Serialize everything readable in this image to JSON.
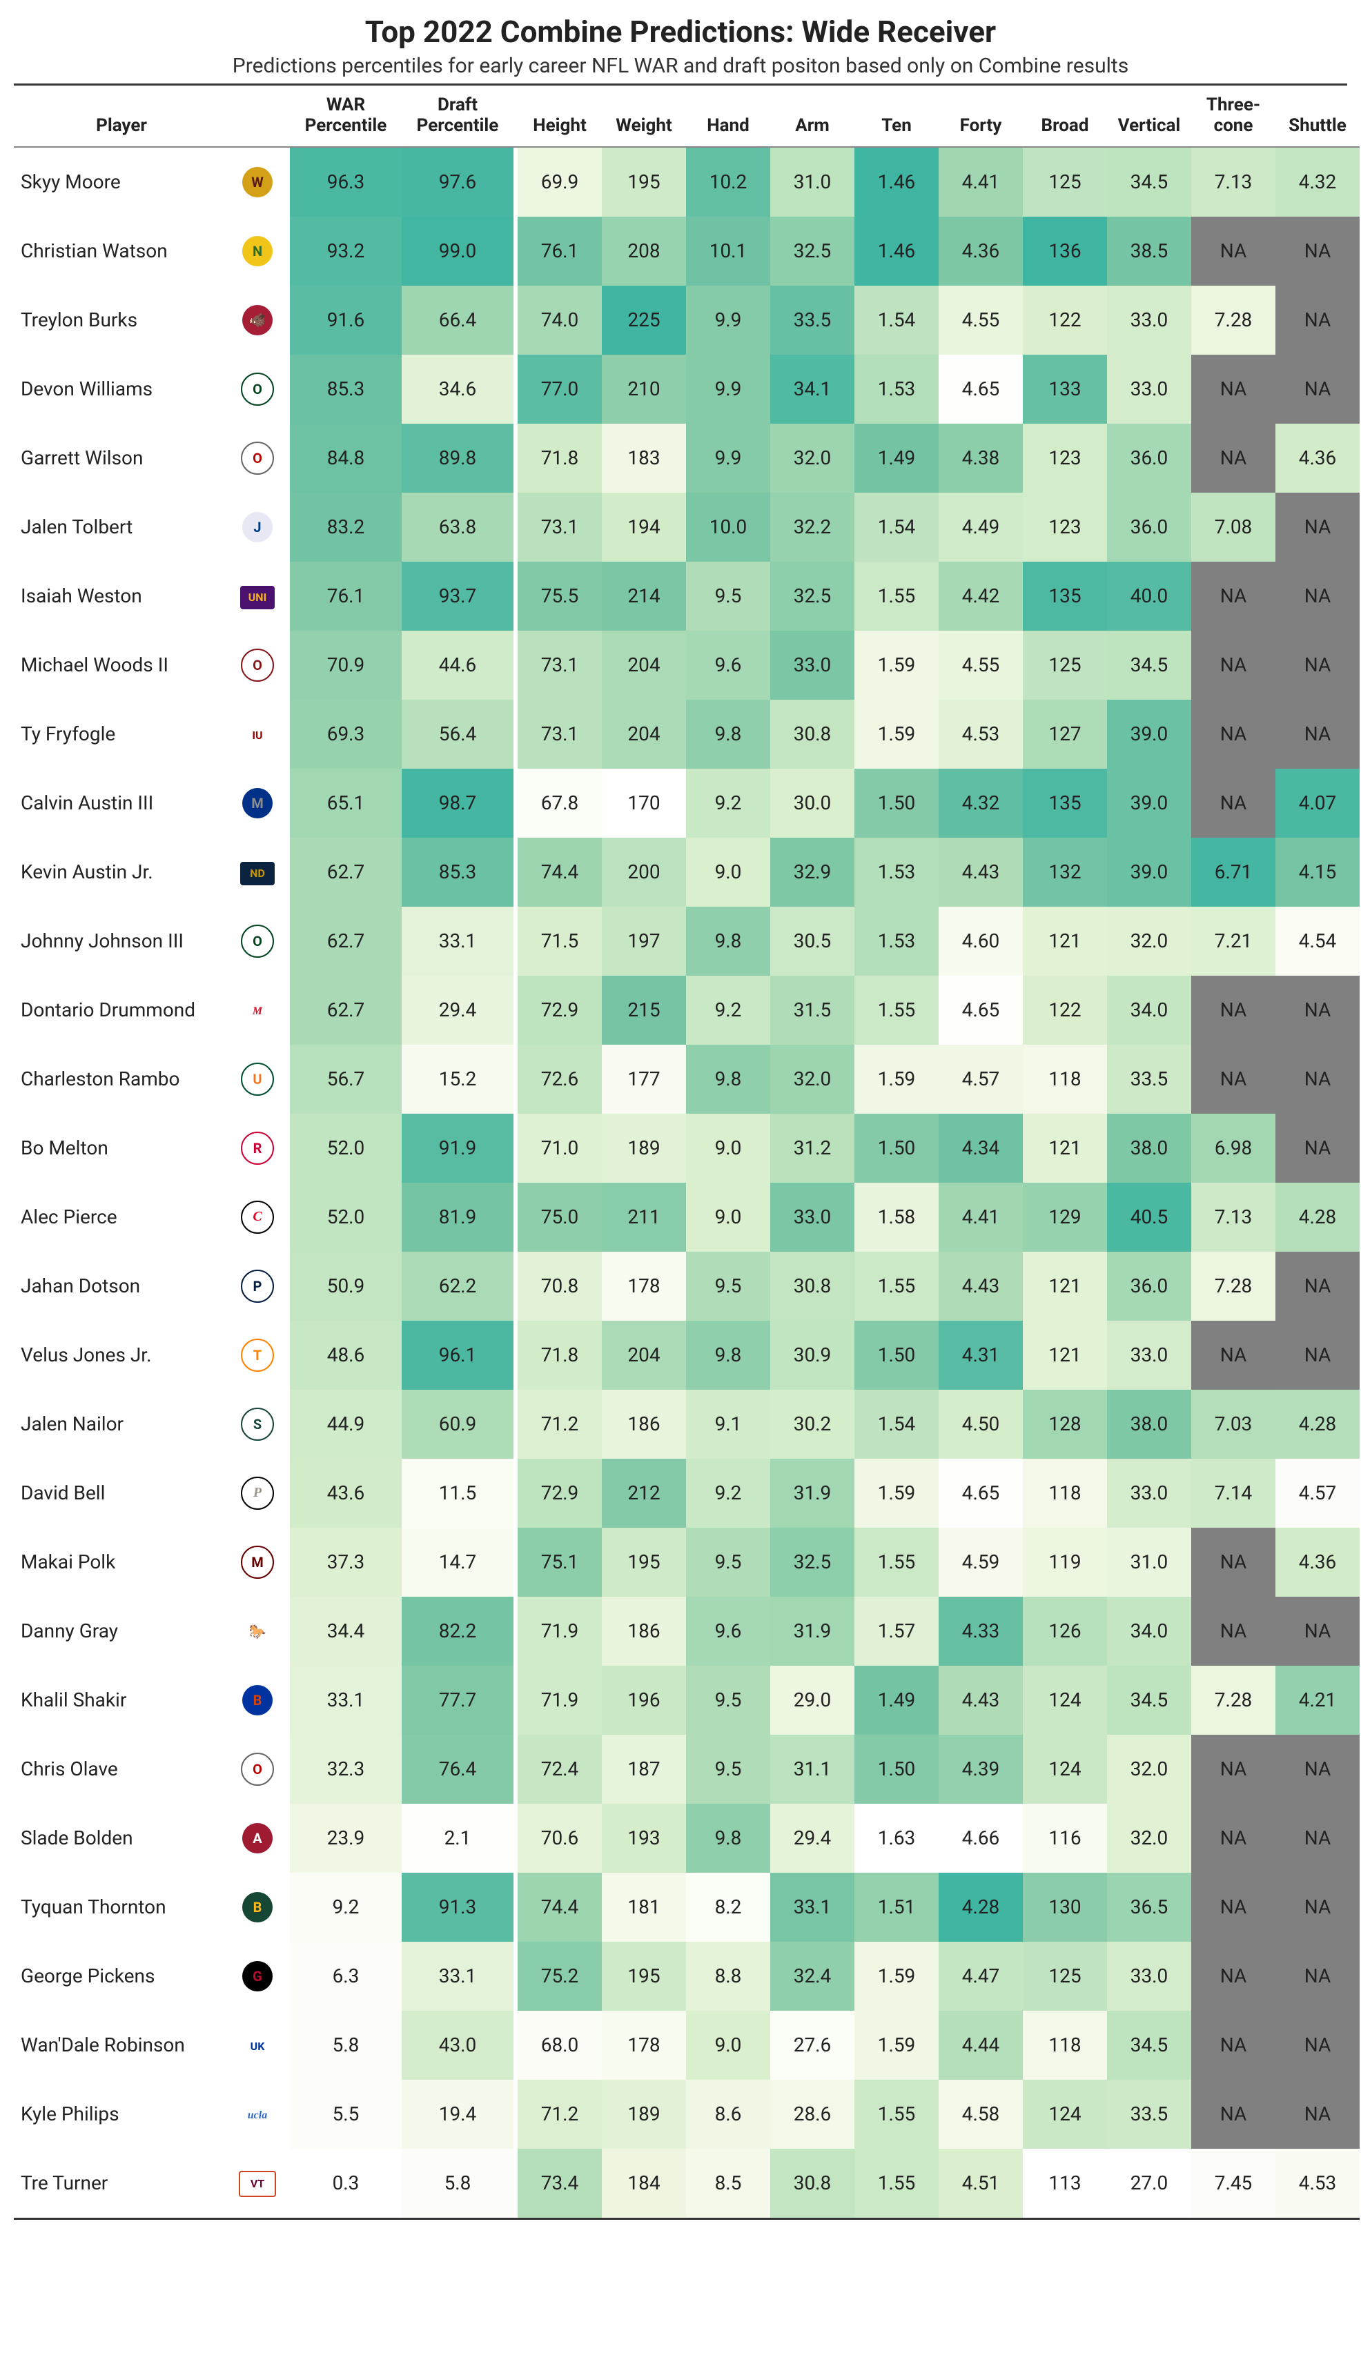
{
  "title": "Top 2022 Combine Predictions: Wide Receiver",
  "subtitle": "Predictions percentiles for early career NFL WAR and draft positon based only on Combine results",
  "colors": {
    "na": "#808080",
    "scale": [
      {
        "v": 0,
        "c": "#ffffff"
      },
      {
        "v": 20,
        "c": "#f5f9ea"
      },
      {
        "v": 40,
        "c": "#daefce"
      },
      {
        "v": 60,
        "c": "#b0ddb8"
      },
      {
        "v": 80,
        "c": "#7bc6a4"
      },
      {
        "v": 100,
        "c": "#40b5a2"
      }
    ]
  },
  "columns": [
    {
      "key": "player",
      "label": "Player"
    },
    {
      "key": "logo",
      "label": ""
    },
    {
      "key": "war",
      "label": "WAR Percentile",
      "wide": true
    },
    {
      "key": "draft",
      "label": "Draft Percentile",
      "wide": true
    },
    {
      "key": "height",
      "label": "Height"
    },
    {
      "key": "weight",
      "label": "Weight"
    },
    {
      "key": "hand",
      "label": "Hand"
    },
    {
      "key": "arm",
      "label": "Arm"
    },
    {
      "key": "ten",
      "label": "Ten"
    },
    {
      "key": "forty",
      "label": "Forty"
    },
    {
      "key": "broad",
      "label": "Broad"
    },
    {
      "key": "vertical",
      "label": "Vertical"
    },
    {
      "key": "three",
      "label": "Three-cone"
    },
    {
      "key": "shuttle",
      "label": "Shuttle"
    }
  ],
  "metrics": [
    {
      "key": "war",
      "min": 0,
      "max": 100
    },
    {
      "key": "draft",
      "min": 0,
      "max": 100
    },
    {
      "key": "height",
      "min": 67,
      "max": 78,
      "fmt": 1
    },
    {
      "key": "weight",
      "min": 170,
      "max": 225,
      "fmt": 0
    },
    {
      "key": "hand",
      "min": 8.0,
      "max": 10.5,
      "fmt": 1
    },
    {
      "key": "arm",
      "min": 27,
      "max": 34.5,
      "fmt": 1
    },
    {
      "key": "ten",
      "min": 1.63,
      "max": 1.46,
      "fmt": 2,
      "inv": true
    },
    {
      "key": "forty",
      "min": 4.66,
      "max": 4.28,
      "fmt": 2,
      "inv": true
    },
    {
      "key": "broad",
      "min": 113,
      "max": 136,
      "fmt": 0
    },
    {
      "key": "vertical",
      "min": 27,
      "max": 41,
      "fmt": 1
    },
    {
      "key": "three",
      "min": 7.5,
      "max": 6.7,
      "fmt": 2,
      "inv": true
    },
    {
      "key": "shuttle",
      "min": 4.6,
      "max": 4.05,
      "fmt": 2,
      "inv": true
    }
  ],
  "rows": [
    {
      "player": "Skyy Moore",
      "logo": {
        "txt": "W",
        "bg": "#d4a017",
        "fg": "#5a1a1a"
      },
      "war": 96.3,
      "draft": 97.6,
      "height": 69.9,
      "weight": 195,
      "hand": 10.2,
      "arm": 31.0,
      "ten": 1.46,
      "forty": 4.41,
      "broad": 125,
      "vertical": 34.5,
      "three": 7.13,
      "shuttle": 4.32
    },
    {
      "player": "Christian Watson",
      "logo": {
        "txt": "N",
        "bg": "#f0c419",
        "fg": "#2a6b2a"
      },
      "war": 93.2,
      "draft": 99.0,
      "height": 76.1,
      "weight": 208,
      "hand": 10.1,
      "arm": 32.5,
      "ten": 1.46,
      "forty": 4.36,
      "broad": 136,
      "vertical": 38.5,
      "three": null,
      "shuttle": null
    },
    {
      "player": "Treylon Burks",
      "logo": {
        "txt": "🐗",
        "bg": "#a51e36",
        "fg": "#fff"
      },
      "war": 91.6,
      "draft": 66.4,
      "height": 74.0,
      "weight": 225,
      "hand": 9.9,
      "arm": 33.5,
      "ten": 1.54,
      "forty": 4.55,
      "broad": 122,
      "vertical": 33.0,
      "three": 7.28,
      "shuttle": null
    },
    {
      "player": "Devon Williams",
      "logo": {
        "txt": "O",
        "bg": "#ffffff",
        "fg": "#044520",
        "br": "#044520"
      },
      "war": 85.3,
      "draft": 34.6,
      "height": 77.0,
      "weight": 210,
      "hand": 9.9,
      "arm": 34.1,
      "ten": 1.53,
      "forty": 4.65,
      "broad": 133,
      "vertical": 33.0,
      "three": null,
      "shuttle": null
    },
    {
      "player": "Garrett Wilson",
      "logo": {
        "txt": "O",
        "bg": "#ffffff",
        "fg": "#bb0000",
        "br": "#666"
      },
      "war": 84.8,
      "draft": 89.8,
      "height": 71.8,
      "weight": 183,
      "hand": 9.9,
      "arm": 32.0,
      "ten": 1.49,
      "forty": 4.38,
      "broad": 123,
      "vertical": 36.0,
      "three": null,
      "shuttle": 4.36
    },
    {
      "player": "Jalen Tolbert",
      "logo": {
        "txt": "J",
        "bg": "#e8e8f5",
        "fg": "#003e7e"
      },
      "war": 83.2,
      "draft": 63.8,
      "height": 73.1,
      "weight": 194,
      "hand": 10.0,
      "arm": 32.2,
      "ten": 1.54,
      "forty": 4.49,
      "broad": 123,
      "vertical": 36.0,
      "three": 7.08,
      "shuttle": null
    },
    {
      "player": "Isaiah Weston",
      "logo": {
        "txt": "UNI",
        "bg": "#4b116f",
        "fg": "#f6b21b",
        "sq": true
      },
      "war": 76.1,
      "draft": 93.7,
      "height": 75.5,
      "weight": 214,
      "hand": 9.5,
      "arm": 32.5,
      "ten": 1.55,
      "forty": 4.42,
      "broad": 135,
      "vertical": 40.0,
      "three": null,
      "shuttle": null
    },
    {
      "player": "Michael Woods II",
      "logo": {
        "txt": "O",
        "bg": "#ffffff",
        "fg": "#841617",
        "br": "#841617"
      },
      "war": 70.9,
      "draft": 44.6,
      "height": 73.1,
      "weight": 204,
      "hand": 9.6,
      "arm": 33.0,
      "ten": 1.59,
      "forty": 4.55,
      "broad": 125,
      "vertical": 34.5,
      "three": null,
      "shuttle": null
    },
    {
      "player": "Ty Fryfogle",
      "logo": {
        "txt": "IU",
        "bg": "#ffffff",
        "fg": "#990000",
        "sq": true
      },
      "war": 69.3,
      "draft": 56.4,
      "height": 73.1,
      "weight": 204,
      "hand": 9.8,
      "arm": 30.8,
      "ten": 1.59,
      "forty": 4.53,
      "broad": 127,
      "vertical": 39.0,
      "three": null,
      "shuttle": null
    },
    {
      "player": "Calvin Austin III",
      "logo": {
        "txt": "M",
        "bg": "#003087",
        "fg": "#898d8d"
      },
      "war": 65.1,
      "draft": 98.7,
      "height": 67.8,
      "weight": 170,
      "hand": 9.2,
      "arm": 30.0,
      "ten": 1.5,
      "forty": 4.32,
      "broad": 135,
      "vertical": 39.0,
      "three": null,
      "shuttle": 4.07
    },
    {
      "player": "Kevin Austin Jr.",
      "logo": {
        "txt": "ND",
        "bg": "#0c2340",
        "fg": "#c99700",
        "sq": true
      },
      "war": 62.7,
      "draft": 85.3,
      "height": 74.4,
      "weight": 200,
      "hand": 9.0,
      "arm": 32.9,
      "ten": 1.53,
      "forty": 4.43,
      "broad": 132,
      "vertical": 39.0,
      "three": 6.71,
      "shuttle": 4.15
    },
    {
      "player": "Johnny Johnson III",
      "logo": {
        "txt": "O",
        "bg": "#ffffff",
        "fg": "#044520",
        "br": "#044520"
      },
      "war": 62.7,
      "draft": 33.1,
      "height": 71.5,
      "weight": 197,
      "hand": 9.8,
      "arm": 30.5,
      "ten": 1.53,
      "forty": 4.6,
      "broad": 121,
      "vertical": 32.0,
      "three": 7.21,
      "shuttle": 4.54
    },
    {
      "player": "Dontario Drummond",
      "logo": {
        "txt": "M",
        "bg": "#ffffff",
        "fg": "#ce1126",
        "sq": true,
        "sc": true
      },
      "war": 62.7,
      "draft": 29.4,
      "height": 72.9,
      "weight": 215,
      "hand": 9.2,
      "arm": 31.5,
      "ten": 1.55,
      "forty": 4.65,
      "broad": 122,
      "vertical": 34.0,
      "three": null,
      "shuttle": null
    },
    {
      "player": "Charleston Rambo",
      "logo": {
        "txt": "U",
        "bg": "#ffffff",
        "fg": "#f47321",
        "br": "#005030"
      },
      "war": 56.7,
      "draft": 15.2,
      "height": 72.6,
      "weight": 177,
      "hand": 9.8,
      "arm": 32.0,
      "ten": 1.59,
      "forty": 4.57,
      "broad": 118,
      "vertical": 33.5,
      "three": null,
      "shuttle": null
    },
    {
      "player": "Bo Melton",
      "logo": {
        "txt": "R",
        "bg": "#ffffff",
        "fg": "#cc0033",
        "br": "#cc0033"
      },
      "war": 52.0,
      "draft": 91.9,
      "height": 71.0,
      "weight": 189,
      "hand": 9.0,
      "arm": 31.2,
      "ten": 1.5,
      "forty": 4.34,
      "broad": 121,
      "vertical": 38.0,
      "three": 6.98,
      "shuttle": null
    },
    {
      "player": "Alec Pierce",
      "logo": {
        "txt": "C",
        "bg": "#ffffff",
        "fg": "#e00122",
        "br": "#000",
        "sc": true
      },
      "war": 52.0,
      "draft": 81.9,
      "height": 75.0,
      "weight": 211,
      "hand": 9.0,
      "arm": 33.0,
      "ten": 1.58,
      "forty": 4.41,
      "broad": 129,
      "vertical": 40.5,
      "three": 7.13,
      "shuttle": 4.28
    },
    {
      "player": "Jahan Dotson",
      "logo": {
        "txt": "P",
        "bg": "#ffffff",
        "fg": "#041e42",
        "br": "#041e42"
      },
      "war": 50.9,
      "draft": 62.2,
      "height": 70.8,
      "weight": 178,
      "hand": 9.5,
      "arm": 30.8,
      "ten": 1.55,
      "forty": 4.43,
      "broad": 121,
      "vertical": 36.0,
      "three": 7.28,
      "shuttle": null
    },
    {
      "player": "Velus Jones Jr.",
      "logo": {
        "txt": "T",
        "bg": "#ffffff",
        "fg": "#ff8200",
        "br": "#ff8200"
      },
      "war": 48.6,
      "draft": 96.1,
      "height": 71.8,
      "weight": 204,
      "hand": 9.8,
      "arm": 30.9,
      "ten": 1.5,
      "forty": 4.31,
      "broad": 121,
      "vertical": 33.0,
      "three": null,
      "shuttle": null
    },
    {
      "player": "Jalen Nailor",
      "logo": {
        "txt": "S",
        "bg": "#ffffff",
        "fg": "#18453b",
        "br": "#18453b"
      },
      "war": 44.9,
      "draft": 60.9,
      "height": 71.2,
      "weight": 186,
      "hand": 9.1,
      "arm": 30.2,
      "ten": 1.54,
      "forty": 4.5,
      "broad": 128,
      "vertical": 38.0,
      "three": 7.03,
      "shuttle": 4.28
    },
    {
      "player": "David Bell",
      "logo": {
        "txt": "P",
        "bg": "#ffffff",
        "fg": "#9d968d",
        "br": "#000",
        "sc": true
      },
      "war": 43.6,
      "draft": 11.5,
      "height": 72.9,
      "weight": 212,
      "hand": 9.2,
      "arm": 31.9,
      "ten": 1.59,
      "forty": 4.65,
      "broad": 118,
      "vertical": 33.0,
      "three": 7.14,
      "shuttle": 4.57
    },
    {
      "player": "Makai Polk",
      "logo": {
        "txt": "M",
        "bg": "#ffffff",
        "fg": "#660000",
        "br": "#660000"
      },
      "war": 37.3,
      "draft": 14.7,
      "height": 75.1,
      "weight": 195,
      "hand": 9.5,
      "arm": 32.5,
      "ten": 1.55,
      "forty": 4.59,
      "broad": 119,
      "vertical": 31.0,
      "three": null,
      "shuttle": 4.36
    },
    {
      "player": "Danny Gray",
      "logo": {
        "txt": "🐎",
        "bg": "#ffffff",
        "fg": "#cc0035"
      },
      "war": 34.4,
      "draft": 82.2,
      "height": 71.9,
      "weight": 186,
      "hand": 9.6,
      "arm": 31.9,
      "ten": 1.57,
      "forty": 4.33,
      "broad": 126,
      "vertical": 34.0,
      "three": null,
      "shuttle": null
    },
    {
      "player": "Khalil Shakir",
      "logo": {
        "txt": "B",
        "bg": "#0033a0",
        "fg": "#d64309"
      },
      "war": 33.1,
      "draft": 77.7,
      "height": 71.9,
      "weight": 196,
      "hand": 9.5,
      "arm": 29.0,
      "ten": 1.49,
      "forty": 4.43,
      "broad": 124,
      "vertical": 34.5,
      "three": 7.28,
      "shuttle": 4.21
    },
    {
      "player": "Chris Olave",
      "logo": {
        "txt": "O",
        "bg": "#ffffff",
        "fg": "#bb0000",
        "br": "#666"
      },
      "war": 32.3,
      "draft": 76.4,
      "height": 72.4,
      "weight": 187,
      "hand": 9.5,
      "arm": 31.1,
      "ten": 1.5,
      "forty": 4.39,
      "broad": 124,
      "vertical": 32.0,
      "three": null,
      "shuttle": null
    },
    {
      "player": "Slade Bolden",
      "logo": {
        "txt": "A",
        "bg": "#9e1b32",
        "fg": "#ffffff"
      },
      "war": 23.9,
      "draft": 2.1,
      "height": 70.6,
      "weight": 193,
      "hand": 9.8,
      "arm": 29.4,
      "ten": 1.63,
      "forty": 4.66,
      "broad": 116,
      "vertical": 32.0,
      "three": null,
      "shuttle": null
    },
    {
      "player": "Tyquan Thornton",
      "logo": {
        "txt": "B",
        "bg": "#154734",
        "fg": "#ffb81c"
      },
      "war": 9.2,
      "draft": 91.3,
      "height": 74.4,
      "weight": 181,
      "hand": 8.2,
      "arm": 33.1,
      "ten": 1.51,
      "forty": 4.28,
      "broad": 130,
      "vertical": 36.5,
      "three": null,
      "shuttle": null
    },
    {
      "player": "George Pickens",
      "logo": {
        "txt": "G",
        "bg": "#000000",
        "fg": "#ba0c2f"
      },
      "war": 6.3,
      "draft": 33.1,
      "height": 75.2,
      "weight": 195,
      "hand": 8.8,
      "arm": 32.4,
      "ten": 1.59,
      "forty": 4.47,
      "broad": 125,
      "vertical": 33.0,
      "three": null,
      "shuttle": null
    },
    {
      "player": "Wan'Dale Robinson",
      "logo": {
        "txt": "UK",
        "bg": "#ffffff",
        "fg": "#0033a0",
        "sq": true
      },
      "war": 5.8,
      "draft": 43.0,
      "height": 68.0,
      "weight": 178,
      "hand": 9.0,
      "arm": 27.6,
      "ten": 1.59,
      "forty": 4.44,
      "broad": 118,
      "vertical": 34.5,
      "three": null,
      "shuttle": null
    },
    {
      "player": "Kyle Philips",
      "logo": {
        "txt": "ucla",
        "bg": "#ffffff",
        "fg": "#2d68c4",
        "sq": true,
        "sc": true
      },
      "war": 5.5,
      "draft": 19.4,
      "height": 71.2,
      "weight": 189,
      "hand": 8.6,
      "arm": 28.6,
      "ten": 1.55,
      "forty": 4.58,
      "broad": 124,
      "vertical": 33.5,
      "three": null,
      "shuttle": null
    },
    {
      "player": "Tre Turner",
      "logo": {
        "txt": "VT",
        "bg": "#ffffff",
        "fg": "#630031",
        "br": "#cf4420",
        "sq": true
      },
      "war": 0.3,
      "draft": 5.8,
      "height": 73.4,
      "weight": 184,
      "hand": 8.5,
      "arm": 30.8,
      "ten": 1.55,
      "forty": 4.51,
      "broad": 113,
      "vertical": 27.0,
      "three": 7.45,
      "shuttle": 4.53
    }
  ]
}
